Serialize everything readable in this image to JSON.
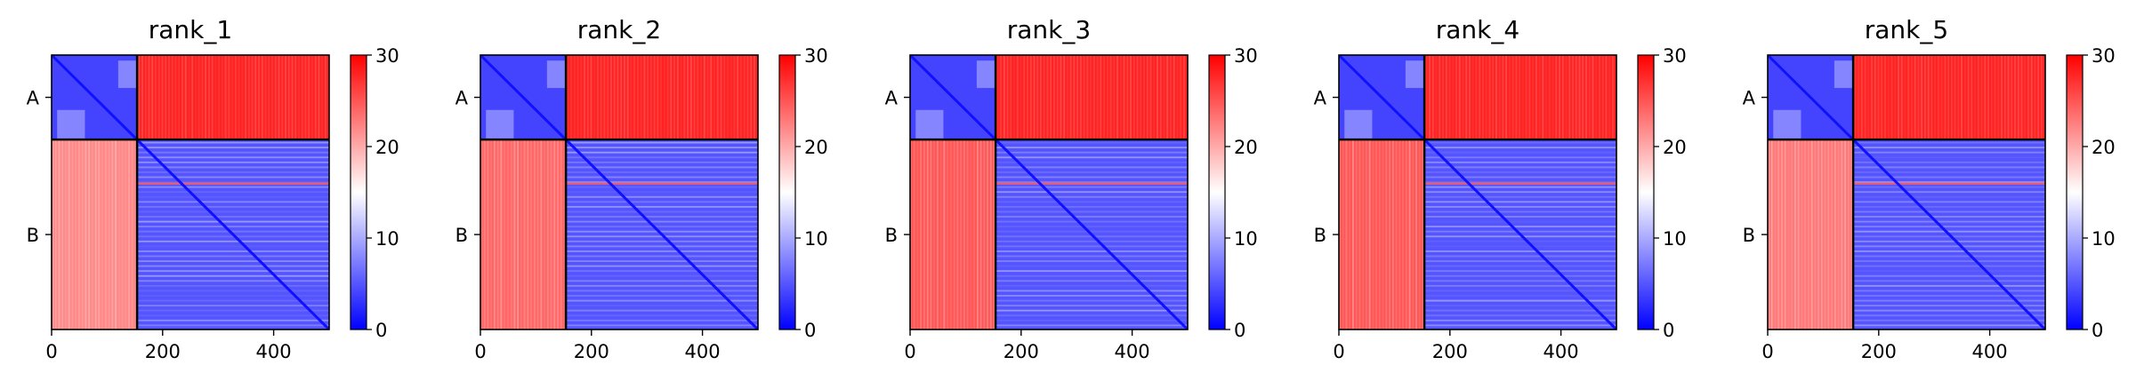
{
  "chart_data": [
    {
      "type": "heatmap",
      "title": "rank_1",
      "xlabel": "",
      "ylabel": "",
      "x_ticks": [
        0,
        200,
        400
      ],
      "xlim": [
        0,
        500
      ],
      "y_tick_labels": [
        "A",
        "B"
      ],
      "chain_boundary": 154,
      "total_length": 500,
      "colorbar": {
        "ticks": [
          0,
          10,
          20,
          30
        ],
        "range": [
          0,
          30
        ],
        "colormap": [
          "#0000ff",
          "#ffffff",
          "#ff0000"
        ]
      },
      "blocks": {
        "A_A": 4,
        "A_B": 28,
        "B_A": 22,
        "B_B": 5
      }
    },
    {
      "type": "heatmap",
      "title": "rank_2",
      "xlabel": "",
      "ylabel": "",
      "x_ticks": [
        0,
        200,
        400
      ],
      "xlim": [
        0,
        500
      ],
      "y_tick_labels": [
        "A",
        "B"
      ],
      "chain_boundary": 154,
      "total_length": 500,
      "colorbar": {
        "ticks": [
          0,
          10,
          20,
          30
        ],
        "range": [
          0,
          30
        ],
        "colormap": [
          "#0000ff",
          "#ffffff",
          "#ff0000"
        ]
      },
      "blocks": {
        "A_A": 4,
        "A_B": 28,
        "B_A": 24,
        "B_B": 5
      }
    },
    {
      "type": "heatmap",
      "title": "rank_3",
      "xlabel": "",
      "ylabel": "",
      "x_ticks": [
        0,
        200,
        400
      ],
      "xlim": [
        0,
        500
      ],
      "y_tick_labels": [
        "A",
        "B"
      ],
      "chain_boundary": 154,
      "total_length": 500,
      "colorbar": {
        "ticks": [
          0,
          10,
          20,
          30
        ],
        "range": [
          0,
          30
        ],
        "colormap": [
          "#0000ff",
          "#ffffff",
          "#ff0000"
        ]
      },
      "blocks": {
        "A_A": 4,
        "A_B": 28,
        "B_A": 25,
        "B_B": 5
      }
    },
    {
      "type": "heatmap",
      "title": "rank_4",
      "xlabel": "",
      "ylabel": "",
      "x_ticks": [
        0,
        200,
        400
      ],
      "xlim": [
        0,
        500
      ],
      "y_tick_labels": [
        "A",
        "B"
      ],
      "chain_boundary": 154,
      "total_length": 500,
      "colorbar": {
        "ticks": [
          0,
          10,
          20,
          30
        ],
        "range": [
          0,
          30
        ],
        "colormap": [
          "#0000ff",
          "#ffffff",
          "#ff0000"
        ]
      },
      "blocks": {
        "A_A": 4,
        "A_B": 28,
        "B_A": 25,
        "B_B": 5
      }
    },
    {
      "type": "heatmap",
      "title": "rank_5",
      "xlabel": "",
      "ylabel": "",
      "x_ticks": [
        0,
        200,
        400
      ],
      "xlim": [
        0,
        500
      ],
      "y_tick_labels": [
        "A",
        "B"
      ],
      "chain_boundary": 154,
      "total_length": 500,
      "colorbar": {
        "ticks": [
          0,
          10,
          20,
          30
        ],
        "range": [
          0,
          30
        ],
        "colormap": [
          "#0000ff",
          "#ffffff",
          "#ff0000"
        ]
      },
      "blocks": {
        "A_A": 4,
        "A_B": 28,
        "B_A": 23,
        "B_B": 5
      }
    }
  ]
}
